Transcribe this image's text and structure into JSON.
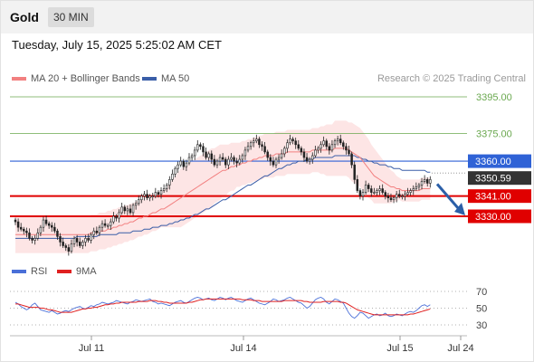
{
  "header": {
    "title": "Gold",
    "interval": "30 MIN"
  },
  "datetime": "Tuesday, July 15, 2025 5:25:02 AM CET",
  "legend": {
    "ma20": {
      "label": "MA 20 + Bollinger Bands",
      "color": "#f28080"
    },
    "ma50": {
      "label": "MA 50",
      "color": "#3a5ea8"
    },
    "rsi": {
      "label": "RSI",
      "color": "#4a6fd8"
    },
    "rsi_ma": {
      "label": "9MA",
      "color": "#e02020"
    }
  },
  "research": "Research © 2025 Trading Central",
  "chart_data": [
    {
      "type": "candlestick",
      "name": "price",
      "x_ticks": [
        "Jul 11",
        "Jul 14",
        "Jul 15",
        "Jul 24"
      ],
      "ylim": [
        3306,
        3412
      ],
      "levels": [
        {
          "value": 3395.0,
          "label": "3395.00",
          "color": "#6aa84f",
          "style": "thin"
        },
        {
          "value": 3375.0,
          "label": "3375.00",
          "color": "#6aa84f",
          "style": "thin"
        },
        {
          "value": 3360.0,
          "label": "3360.00",
          "color": "#2f62d6",
          "style": "box"
        },
        {
          "value": 3350.59,
          "label": "3350.59",
          "color": "#333333",
          "style": "current"
        },
        {
          "value": 3341.0,
          "label": "3341.00",
          "color": "#e00000",
          "style": "box-thick"
        },
        {
          "value": 3330.0,
          "label": "3330.00",
          "color": "#e00000",
          "style": "box-thick"
        }
      ],
      "forecast_arrow": {
        "from": 3350,
        "to": 3331
      },
      "close_series": [
        3327,
        3324,
        3323,
        3322,
        3321,
        3318,
        3317,
        3318,
        3321,
        3324,
        3328,
        3326,
        3325,
        3324,
        3322,
        3319,
        3316,
        3314,
        3313,
        3311,
        3315,
        3318,
        3316,
        3314,
        3316,
        3318,
        3317,
        3320,
        3322,
        3321,
        3324,
        3326,
        3325,
        3325,
        3327,
        3330,
        3329,
        3332,
        3335,
        3333,
        3334,
        3332,
        3336,
        3337,
        3339,
        3341,
        3342,
        3340,
        3341,
        3341,
        3343,
        3342,
        3344,
        3345,
        3347,
        3350,
        3353,
        3356,
        3358,
        3360,
        3357,
        3359,
        3362,
        3363,
        3366,
        3369,
        3368,
        3365,
        3362,
        3364,
        3361,
        3358,
        3360,
        3362,
        3361,
        3358,
        3361,
        3362,
        3360,
        3359,
        3361,
        3363,
        3366,
        3368,
        3370,
        3371,
        3372,
        3369,
        3368,
        3365,
        3362,
        3360,
        3358,
        3361,
        3362,
        3364,
        3367,
        3370,
        3372,
        3371,
        3369,
        3367,
        3365,
        3362,
        3360,
        3361,
        3363,
        3366,
        3367,
        3369,
        3371,
        3368,
        3366,
        3369,
        3371,
        3372,
        3370,
        3368,
        3366,
        3364,
        3358,
        3350,
        3344,
        3341,
        3343,
        3347,
        3345,
        3343,
        3343,
        3344,
        3345,
        3343,
        3341,
        3340,
        3339,
        3340,
        3342,
        3341,
        3341,
        3342,
        3343,
        3344,
        3345,
        3346,
        3347,
        3349,
        3350,
        3348,
        3350
      ],
      "ma20": [
        3320,
        3320,
        3320,
        3320,
        3320,
        3320,
        3320,
        3320,
        3320,
        3320,
        3320,
        3320,
        3320,
        3320,
        3320,
        3320,
        3320,
        3320,
        3320,
        3320,
        3320,
        3320,
        3320,
        3320,
        3320,
        3320,
        3320,
        3321,
        3321,
        3321,
        3322,
        3322,
        3322,
        3323,
        3323,
        3324,
        3324,
        3325,
        3325,
        3326,
        3326,
        3327,
        3327,
        3328,
        3329,
        3329,
        3330,
        3330,
        3331,
        3332,
        3332,
        3333,
        3334,
        3334,
        3335,
        3336,
        3337,
        3338,
        3339,
        3340,
        3341,
        3342,
        3343,
        3344,
        3345,
        3346,
        3347,
        3348,
        3349,
        3350,
        3351,
        3352,
        3353,
        3354,
        3355,
        3355,
        3356,
        3357,
        3357,
        3358,
        3358,
        3359,
        3359,
        3360,
        3360,
        3361,
        3361,
        3362,
        3362,
        3363,
        3363,
        3363,
        3363,
        3364,
        3364,
        3364,
        3364,
        3365,
        3365,
        3365,
        3365,
        3365,
        3365,
        3365,
        3365,
        3365,
        3366,
        3366,
        3366,
        3366,
        3366,
        3366,
        3366,
        3366,
        3367,
        3367,
        3367,
        3367,
        3367,
        3366,
        3365,
        3364,
        3363,
        3362,
        3360,
        3358,
        3356,
        3354,
        3352,
        3351,
        3350,
        3349,
        3348,
        3347,
        3346,
        3346,
        3345,
        3345,
        3344,
        3344,
        3344,
        3344,
        3344,
        3344,
        3344,
        3345,
        3345,
        3345,
        3345
      ],
      "ma50": [
        3318,
        3318,
        3318,
        3318,
        3318,
        3318,
        3318,
        3318,
        3318,
        3318,
        3318,
        3318,
        3318,
        3318,
        3318,
        3318,
        3318,
        3318,
        3318,
        3318,
        3318,
        3318,
        3319,
        3319,
        3319,
        3319,
        3319,
        3319,
        3319,
        3319,
        3320,
        3320,
        3320,
        3320,
        3320,
        3320,
        3320,
        3321,
        3321,
        3321,
        3321,
        3321,
        3322,
        3322,
        3322,
        3322,
        3323,
        3323,
        3323,
        3324,
        3324,
        3324,
        3325,
        3325,
        3325,
        3326,
        3326,
        3327,
        3327,
        3328,
        3328,
        3329,
        3329,
        3330,
        3331,
        3331,
        3332,
        3333,
        3334,
        3334,
        3335,
        3336,
        3337,
        3338,
        3339,
        3339,
        3340,
        3341,
        3342,
        3343,
        3344,
        3345,
        3346,
        3347,
        3347,
        3348,
        3349,
        3350,
        3351,
        3352,
        3352,
        3353,
        3354,
        3355,
        3356,
        3356,
        3357,
        3358,
        3358,
        3359,
        3359,
        3360,
        3360,
        3360,
        3361,
        3361,
        3361,
        3362,
        3362,
        3362,
        3362,
        3362,
        3362,
        3362,
        3363,
        3363,
        3363,
        3363,
        3363,
        3363,
        3363,
        3363,
        3362,
        3362,
        3361,
        3361,
        3360,
        3360,
        3359,
        3359,
        3358,
        3358,
        3358,
        3357,
        3357,
        3356,
        3356,
        3356,
        3355,
        3355,
        3355,
        3355,
        3355,
        3355,
        3355,
        3355,
        3355,
        3354,
        3354
      ],
      "bb_width": [
        10,
        10,
        10,
        10,
        10,
        10,
        10,
        10,
        10,
        10,
        10,
        10,
        10,
        10,
        10,
        10,
        10,
        10,
        10,
        10,
        10,
        10,
        10,
        10,
        10,
        10,
        10,
        10,
        10,
        10,
        10,
        10,
        10,
        10,
        10,
        10,
        10,
        10,
        10,
        10,
        10,
        10,
        10,
        10,
        10,
        10,
        10,
        10,
        10,
        10,
        10,
        10,
        10,
        10,
        11,
        12,
        13,
        14,
        15,
        16,
        16,
        16,
        16,
        16,
        16,
        16,
        16,
        16,
        16,
        16,
        16,
        15,
        15,
        15,
        14,
        14,
        13,
        13,
        13,
        12,
        12,
        12,
        12,
        12,
        12,
        12,
        12,
        12,
        12,
        12,
        12,
        12,
        12,
        12,
        12,
        12,
        12,
        12,
        12,
        12,
        12,
        12,
        12,
        12,
        12,
        12,
        12,
        12,
        12,
        13,
        13,
        14,
        14,
        14,
        15,
        15,
        15,
        15,
        15,
        15,
        16,
        16,
        16,
        16,
        16,
        16,
        16,
        15,
        15,
        14,
        13,
        12,
        11,
        10,
        9,
        8,
        7,
        6,
        6,
        6,
        6,
        6,
        6,
        6,
        6,
        6,
        6,
        6,
        6
      ]
    },
    {
      "type": "line",
      "name": "rsi",
      "ylim": [
        20,
        80
      ],
      "y_ticks": [
        70,
        50,
        30
      ],
      "rsi": [
        57,
        55,
        52,
        50,
        48,
        50,
        54,
        56,
        52,
        48,
        47,
        46,
        45,
        47,
        45,
        43,
        44,
        46,
        47,
        46,
        48,
        50,
        51,
        52,
        50,
        49,
        51,
        53,
        52,
        54,
        55,
        57,
        56,
        55,
        56,
        57,
        59,
        58,
        57,
        56,
        55,
        57,
        58,
        60,
        59,
        58,
        59,
        60,
        61,
        58,
        57,
        55,
        56,
        55,
        54,
        53,
        55,
        57,
        58,
        59,
        57,
        56,
        58,
        60,
        62,
        63,
        62,
        60,
        61,
        62,
        60,
        59,
        61,
        63,
        62,
        60,
        62,
        63,
        61,
        59,
        58,
        57,
        59,
        61,
        62,
        60,
        58,
        56,
        55,
        54,
        56,
        58,
        61,
        60,
        58,
        59,
        60,
        62,
        63,
        61,
        59,
        57,
        56,
        53,
        50,
        52,
        56,
        60,
        62,
        63,
        61,
        57,
        55,
        58,
        61,
        60,
        58,
        56,
        50,
        44,
        40,
        38,
        41,
        45,
        44,
        41,
        38,
        40,
        42,
        43,
        41,
        42,
        44,
        41,
        40,
        41,
        43,
        42,
        41,
        43,
        45,
        46,
        45,
        47,
        50,
        53,
        54,
        52,
        54
      ],
      "rsi_ma": [
        55,
        55,
        54,
        53,
        52,
        51,
        51,
        51,
        51,
        50,
        50,
        49,
        48,
        48,
        47,
        46,
        45,
        45,
        45,
        45,
        45,
        46,
        47,
        48,
        49,
        49,
        50,
        50,
        51,
        51,
        52,
        53,
        54,
        54,
        55,
        55,
        56,
        56,
        57,
        57,
        57,
        57,
        57,
        57,
        58,
        58,
        58,
        58,
        59,
        59,
        59,
        58,
        58,
        57,
        57,
        56,
        56,
        56,
        56,
        56,
        56,
        56,
        57,
        57,
        58,
        59,
        60,
        60,
        61,
        61,
        61,
        61,
        61,
        61,
        61,
        61,
        61,
        61,
        61,
        61,
        61,
        60,
        60,
        60,
        60,
        59,
        59,
        59,
        58,
        58,
        58,
        58,
        58,
        58,
        58,
        58,
        59,
        59,
        59,
        59,
        59,
        59,
        59,
        58,
        58,
        57,
        57,
        57,
        57,
        57,
        58,
        58,
        58,
        58,
        58,
        58,
        57,
        57,
        56,
        54,
        52,
        50,
        48,
        47,
        46,
        45,
        44,
        43,
        42,
        42,
        42,
        42,
        42,
        42,
        42,
        42,
        42,
        42,
        42,
        42,
        42,
        43,
        43,
        44,
        45,
        46,
        47,
        48,
        49
      ]
    }
  ]
}
